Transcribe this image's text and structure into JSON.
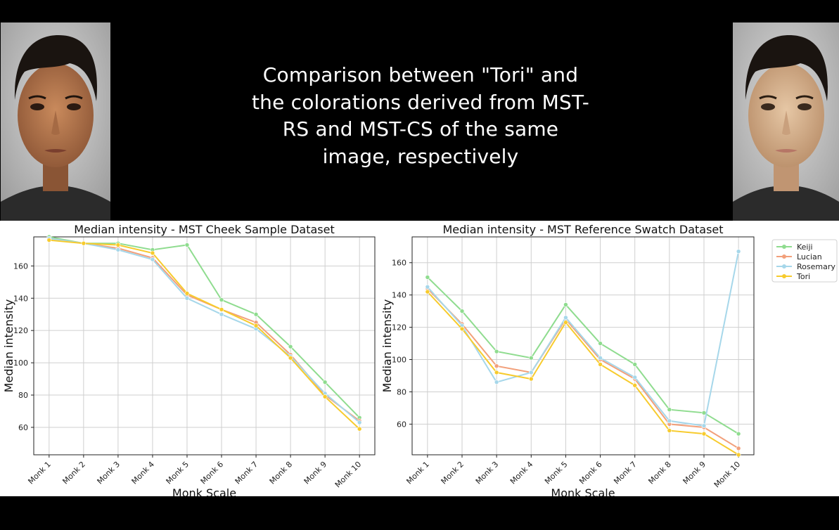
{
  "slide": {
    "title_lines": [
      "Comparison between \"Tori\" and",
      "the colorations derived from MST-",
      "RS and MST-CS of the same",
      "image, respectively"
    ]
  },
  "images": {
    "left_face": "portrait of Tori with darker coloration",
    "right_face": "portrait of Tori with lighter coloration"
  },
  "colors": {
    "Keiji": "#8fdc8f",
    "Lucian": "#f2a07b",
    "Rosemary": "#a6d7ea",
    "Tori": "#f7cb2d"
  },
  "chart_data": [
    {
      "type": "line",
      "title": "Median intensity - MST Cheek Sample Dataset",
      "xlabel": "Monk Scale",
      "ylabel": "Median intensity",
      "categories": [
        "Monk 1",
        "Monk 2",
        "Monk 3",
        "Monk 4",
        "Monk 5",
        "Monk 6",
        "Monk 7",
        "Monk 8",
        "Monk 9",
        "Monk 10"
      ],
      "yticks": [
        60,
        80,
        100,
        120,
        140,
        160
      ],
      "ylim": [
        43,
        178
      ],
      "grid": true,
      "legend": "none",
      "series": [
        {
          "name": "Keiji",
          "values": [
            178,
            174,
            174,
            170,
            173,
            139,
            130,
            110,
            88,
            66
          ]
        },
        {
          "name": "Lucian",
          "values": [
            177,
            174,
            171,
            165,
            142,
            133,
            125,
            105,
            80,
            64
          ]
        },
        {
          "name": "Rosemary",
          "values": [
            177,
            174,
            170,
            164,
            140,
            130,
            121,
            104,
            81,
            63
          ]
        },
        {
          "name": "Tori",
          "values": [
            176,
            174,
            173,
            168,
            143,
            133,
            123,
            103,
            79,
            59
          ]
        }
      ]
    },
    {
      "type": "line",
      "title": "Median intensity - MST Reference Swatch Dataset",
      "xlabel": "Monk Scale",
      "ylabel": "Median intensity",
      "categories": [
        "Monk 1",
        "Monk 2",
        "Monk 3",
        "Monk 4",
        "Monk 5",
        "Monk 6",
        "Monk 7",
        "Monk 8",
        "Monk 9",
        "Monk 10"
      ],
      "yticks": [
        60,
        80,
        100,
        120,
        140,
        160
      ],
      "ylim": [
        41,
        176
      ],
      "grid": true,
      "legend": "outside-top-right",
      "series": [
        {
          "name": "Keiji",
          "values": [
            151,
            130,
            105,
            101,
            134,
            110,
            97,
            69,
            67,
            54
          ]
        },
        {
          "name": "Lucian",
          "values": [
            144,
            122,
            96,
            92,
            125,
            100,
            88,
            60,
            58,
            45
          ]
        },
        {
          "name": "Rosemary",
          "values": [
            145,
            121,
            86,
            92,
            126,
            101,
            89,
            62,
            59,
            167
          ]
        },
        {
          "name": "Tori",
          "values": [
            142,
            119,
            92,
            88,
            123,
            97,
            84,
            56,
            54,
            41
          ]
        }
      ]
    }
  ]
}
